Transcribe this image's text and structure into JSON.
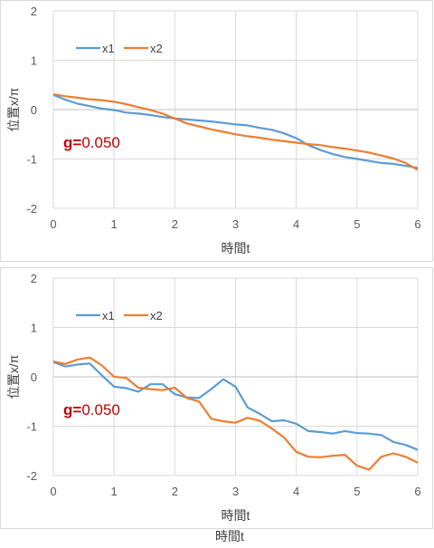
{
  "chart_data": [
    {
      "type": "line",
      "xlabel": "時間t",
      "ylabel": "位置x/π",
      "xlim": [
        0,
        6
      ],
      "ylim": [
        -2,
        2
      ],
      "xticks": [
        "0",
        "1",
        "2",
        "3",
        "4",
        "5",
        "6"
      ],
      "yticks": [
        "2",
        "1",
        "0",
        "-1",
        "-2"
      ],
      "grid": true,
      "legend": "top-left",
      "annotation": {
        "label": "g=",
        "value": "0.050",
        "label_color": "#c00000",
        "value_color": "#c00000"
      },
      "series": [
        {
          "name": "x1",
          "color": "#5b9bd5",
          "x": [
            0,
            0.2,
            0.4,
            0.6,
            0.8,
            1.0,
            1.2,
            1.4,
            1.6,
            1.8,
            2.0,
            2.2,
            2.4,
            2.6,
            2.8,
            3.0,
            3.2,
            3.4,
            3.6,
            3.8,
            4.0,
            4.2,
            4.4,
            4.6,
            4.8,
            5.0,
            5.2,
            5.4,
            5.6,
            5.8,
            6.0
          ],
          "values": [
            0.3,
            0.2,
            0.12,
            0.07,
            0.02,
            -0.01,
            -0.06,
            -0.08,
            -0.11,
            -0.15,
            -0.18,
            -0.2,
            -0.22,
            -0.24,
            -0.27,
            -0.3,
            -0.32,
            -0.37,
            -0.41,
            -0.48,
            -0.58,
            -0.72,
            -0.82,
            -0.9,
            -0.96,
            -1.0,
            -1.04,
            -1.08,
            -1.1,
            -1.14,
            -1.18
          ]
        },
        {
          "name": "x2",
          "color": "#ed7d31",
          "x": [
            0,
            0.2,
            0.4,
            0.6,
            0.8,
            1.0,
            1.2,
            1.4,
            1.6,
            1.8,
            2.0,
            2.2,
            2.4,
            2.6,
            2.8,
            3.0,
            3.2,
            3.4,
            3.6,
            3.8,
            4.0,
            4.2,
            4.4,
            4.6,
            4.8,
            5.0,
            5.2,
            5.4,
            5.6,
            5.8,
            6.0
          ],
          "values": [
            0.31,
            0.27,
            0.24,
            0.21,
            0.19,
            0.16,
            0.11,
            0.05,
            -0.01,
            -0.08,
            -0.18,
            -0.28,
            -0.34,
            -0.4,
            -0.45,
            -0.5,
            -0.54,
            -0.57,
            -0.61,
            -0.64,
            -0.67,
            -0.7,
            -0.72,
            -0.76,
            -0.79,
            -0.83,
            -0.87,
            -0.93,
            -0.99,
            -1.08,
            -1.22
          ]
        }
      ]
    },
    {
      "type": "line",
      "xlabel": "時間t",
      "ylabel": "位置x/π",
      "xlim": [
        0,
        6
      ],
      "ylim": [
        -2,
        2
      ],
      "xticks": [
        "0",
        "1",
        "2",
        "3",
        "4",
        "5",
        "6"
      ],
      "yticks": [
        "2",
        "1",
        "0",
        "-1",
        "-2"
      ],
      "grid": true,
      "legend": "top-left",
      "annotation": {
        "label": "g=",
        "value": "0.050",
        "label_color": "#c00000",
        "value_color": "#c00000"
      },
      "series": [
        {
          "name": "x1",
          "color": "#5b9bd5",
          "x": [
            0,
            0.2,
            0.4,
            0.6,
            0.8,
            1.0,
            1.2,
            1.4,
            1.6,
            1.8,
            2.0,
            2.2,
            2.4,
            2.6,
            2.8,
            3.0,
            3.2,
            3.4,
            3.6,
            3.8,
            4.0,
            4.2,
            4.4,
            4.6,
            4.8,
            5.0,
            5.2,
            5.4,
            5.6,
            5.8,
            6.0
          ],
          "values": [
            0.3,
            0.21,
            0.25,
            0.27,
            0.03,
            -0.2,
            -0.23,
            -0.3,
            -0.15,
            -0.15,
            -0.35,
            -0.42,
            -0.43,
            -0.25,
            -0.05,
            -0.2,
            -0.62,
            -0.75,
            -0.9,
            -0.88,
            -0.95,
            -1.1,
            -1.12,
            -1.15,
            -1.1,
            -1.14,
            -1.15,
            -1.18,
            -1.32,
            -1.38,
            -1.48
          ]
        },
        {
          "name": "x2",
          "color": "#ed7d31",
          "x": [
            0,
            0.2,
            0.4,
            0.6,
            0.8,
            1.0,
            1.2,
            1.4,
            1.6,
            1.8,
            2.0,
            2.2,
            2.4,
            2.6,
            2.8,
            3.0,
            3.2,
            3.4,
            3.6,
            3.8,
            4.0,
            4.2,
            4.4,
            4.6,
            4.8,
            5.0,
            5.2,
            5.4,
            5.6,
            5.8,
            6.0
          ],
          "values": [
            0.31,
            0.26,
            0.35,
            0.39,
            0.23,
            0.0,
            -0.02,
            -0.22,
            -0.25,
            -0.27,
            -0.22,
            -0.43,
            -0.5,
            -0.85,
            -0.9,
            -0.93,
            -0.83,
            -0.89,
            -1.05,
            -1.23,
            -1.52,
            -1.62,
            -1.63,
            -1.6,
            -1.58,
            -1.8,
            -1.88,
            -1.62,
            -1.55,
            -1.62,
            -1.74
          ]
        }
      ]
    }
  ]
}
